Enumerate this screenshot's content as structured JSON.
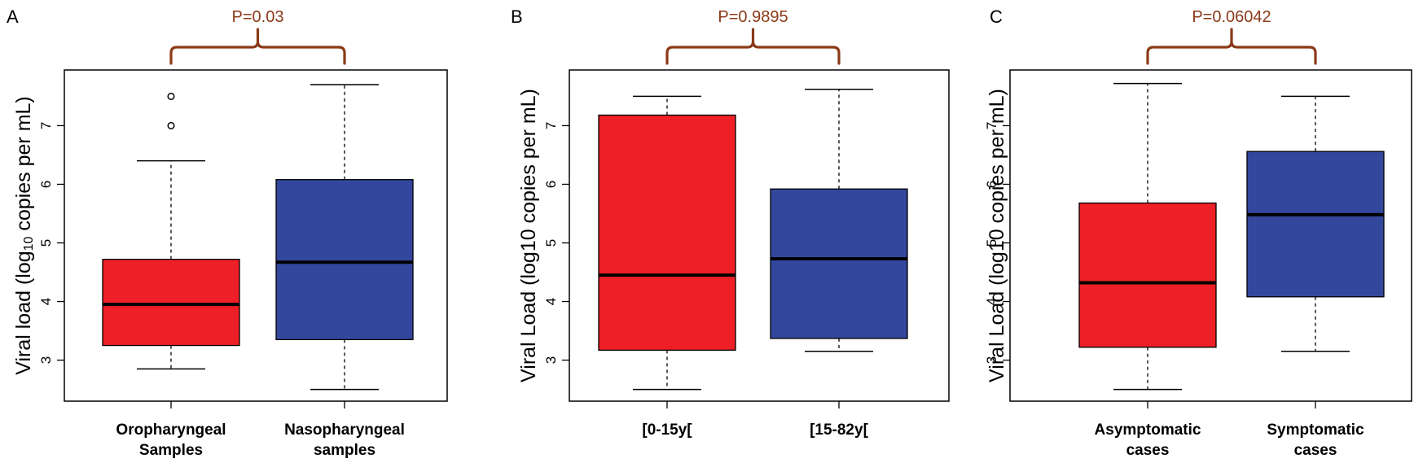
{
  "colors": {
    "group1": "#EE1F26",
    "group2": "#33479D",
    "bracket": "#8B3A17"
  },
  "chart_data": [
    {
      "type": "box",
      "panel_label": "A",
      "ylabel_parts": [
        "Viral load (log",
        "10",
        " copies per mL)"
      ],
      "ylim": [
        2.3,
        7.95
      ],
      "yticks": [
        3,
        4,
        5,
        6,
        7
      ],
      "pvalue": "P=0.03",
      "groups": [
        {
          "label_lines": [
            "Oropharyngeal",
            "Samples"
          ],
          "whisker_low": 2.85,
          "q1": 3.25,
          "median": 3.95,
          "q3": 4.72,
          "whisker_high": 6.4,
          "outliers": [
            7.0,
            7.5
          ],
          "color": "group1"
        },
        {
          "label_lines": [
            "Nasopharyngeal",
            "samples"
          ],
          "whisker_low": 2.5,
          "q1": 3.35,
          "median": 4.67,
          "q3": 6.08,
          "whisker_high": 7.7,
          "outliers": [],
          "color": "group2"
        }
      ]
    },
    {
      "type": "box",
      "panel_label": "B",
      "ylabel_parts": [
        "Viral Load (log10 copies per mL)"
      ],
      "ylim": [
        2.3,
        7.95
      ],
      "yticks": [
        3,
        4,
        5,
        6,
        7
      ],
      "pvalue": "P=0.9895",
      "groups": [
        {
          "label_lines": [
            "[0-15y["
          ],
          "whisker_low": 2.5,
          "q1": 3.17,
          "median": 4.45,
          "q3": 7.18,
          "whisker_high": 7.5,
          "outliers": [],
          "color": "group1"
        },
        {
          "label_lines": [
            "[15-82y["
          ],
          "whisker_low": 3.15,
          "q1": 3.37,
          "median": 4.73,
          "q3": 5.92,
          "whisker_high": 7.62,
          "outliers": [],
          "color": "group2"
        }
      ]
    },
    {
      "type": "box",
      "panel_label": "C",
      "ylabel_parts": [
        "Viral Load (log10 copies per mL)"
      ],
      "ylim": [
        2.3,
        7.95
      ],
      "yticks": [
        3,
        4,
        5,
        6,
        7
      ],
      "pvalue": "P=0.06042",
      "groups": [
        {
          "label_lines": [
            "Asymptomatic",
            "cases"
          ],
          "whisker_low": 2.5,
          "q1": 3.22,
          "median": 4.32,
          "q3": 5.68,
          "whisker_high": 7.72,
          "outliers": [],
          "color": "group1"
        },
        {
          "label_lines": [
            "Symptomatic",
            "cases"
          ],
          "whisker_low": 3.15,
          "q1": 4.08,
          "median": 5.48,
          "q3": 6.56,
          "whisker_high": 7.5,
          "outliers": [],
          "color": "group2"
        }
      ]
    }
  ]
}
